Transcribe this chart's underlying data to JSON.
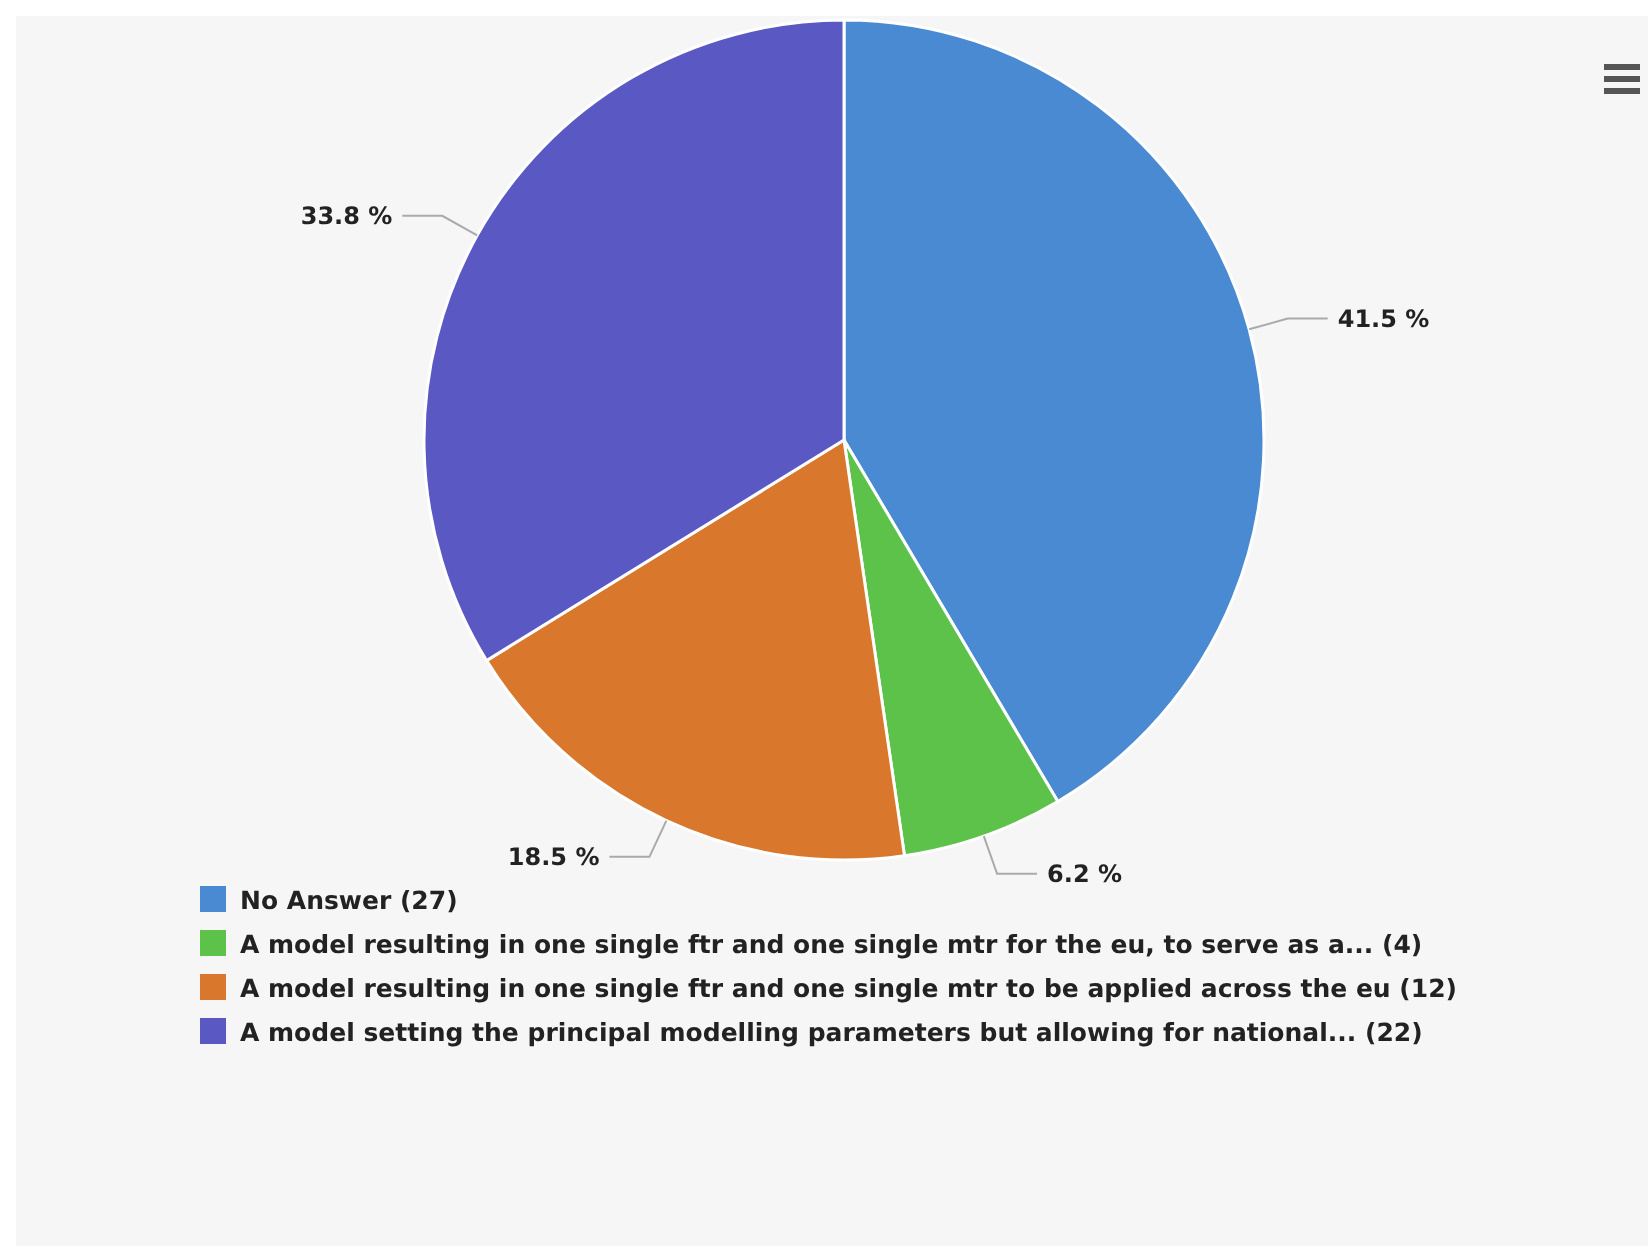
{
  "chart_data": {
    "type": "pie",
    "categories": [
      "No Answer (27)",
      "A model resulting in one single ftr and one single mtr for the eu, to serve as a... (4)",
      "A model resulting in one single ftr and one single mtr to be applied across the eu (12)",
      "A model setting the principal modelling parameters but allowing for national... (22)"
    ],
    "values": [
      41.5,
      6.2,
      18.5,
      33.8
    ],
    "colors": [
      "#4a8ad2",
      "#5cc24a",
      "#d9772c",
      "#5a58c2"
    ],
    "value_labels": [
      "41.5 %",
      "6.2 %",
      "18.5 %",
      "33.8 %"
    ],
    "legend": "bottom"
  }
}
